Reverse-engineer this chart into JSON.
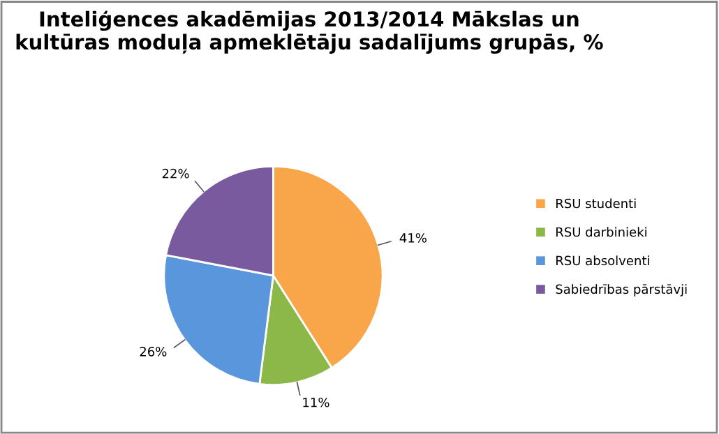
{
  "chart_data": {
    "type": "pie",
    "title": "Inteliģences akadēmijas 2013/2014 Mākslas un kultūras moduļa apmeklētāju sadalījums grupās, %",
    "categories": [
      "RSU studenti",
      "RSU darbinieki",
      "RSU absolventi",
      "Sabiedrības pārstāvji"
    ],
    "values": [
      41,
      11,
      26,
      22
    ],
    "value_labels": [
      "41%",
      "11%",
      "26%",
      "22%"
    ],
    "colors": [
      "#f9a64b",
      "#8cb84a",
      "#5a96dc",
      "#7a5a9e"
    ],
    "legend": "right"
  }
}
